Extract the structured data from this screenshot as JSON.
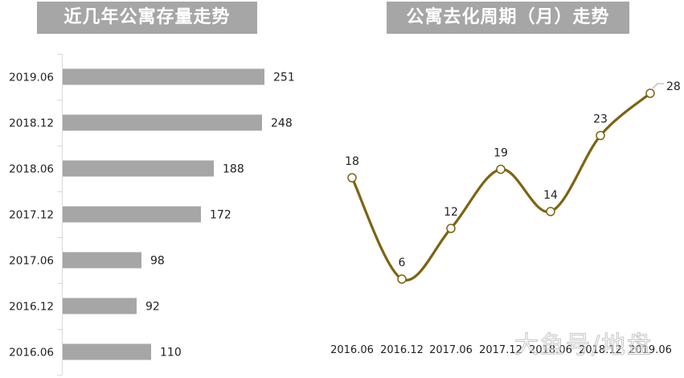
{
  "left_chart": {
    "title": "近几年公寓存量走势"
  },
  "right_chart": {
    "title": "公寓去化周期（月）走势"
  },
  "watermark": "大鱼号/地盘",
  "colors": {
    "title_bg": "#a6a6a6",
    "bar": "#a6a6a6",
    "line": "#7d6412",
    "axis": "#d9d9d9"
  },
  "chart_data": [
    {
      "type": "bar",
      "orientation": "horizontal",
      "title": "近几年公寓存量走势",
      "categories": [
        "2019.06",
        "2018.12",
        "2018.06",
        "2017.12",
        "2017.06",
        "2016.12",
        "2016.06"
      ],
      "values": [
        251,
        248,
        188,
        172,
        98,
        92,
        110
      ],
      "value_labels": [
        "251",
        "248",
        "188",
        "172",
        "98",
        "92",
        "110"
      ],
      "xlabel": "",
      "ylabel": "",
      "grid": false,
      "legend": null
    },
    {
      "type": "line",
      "smooth": true,
      "title": "公寓去化周期（月）走势",
      "categories": [
        "2016.06",
        "2016.12",
        "2017.06",
        "2017.12",
        "2018.06",
        "2018.12",
        "2019.06"
      ],
      "values": [
        18,
        6,
        12,
        19,
        14,
        23,
        28
      ],
      "value_labels": [
        "18",
        "6",
        "12",
        "19",
        "14",
        "23",
        "28"
      ],
      "xlabel": "",
      "ylabel": "",
      "grid": false,
      "legend": null
    }
  ]
}
